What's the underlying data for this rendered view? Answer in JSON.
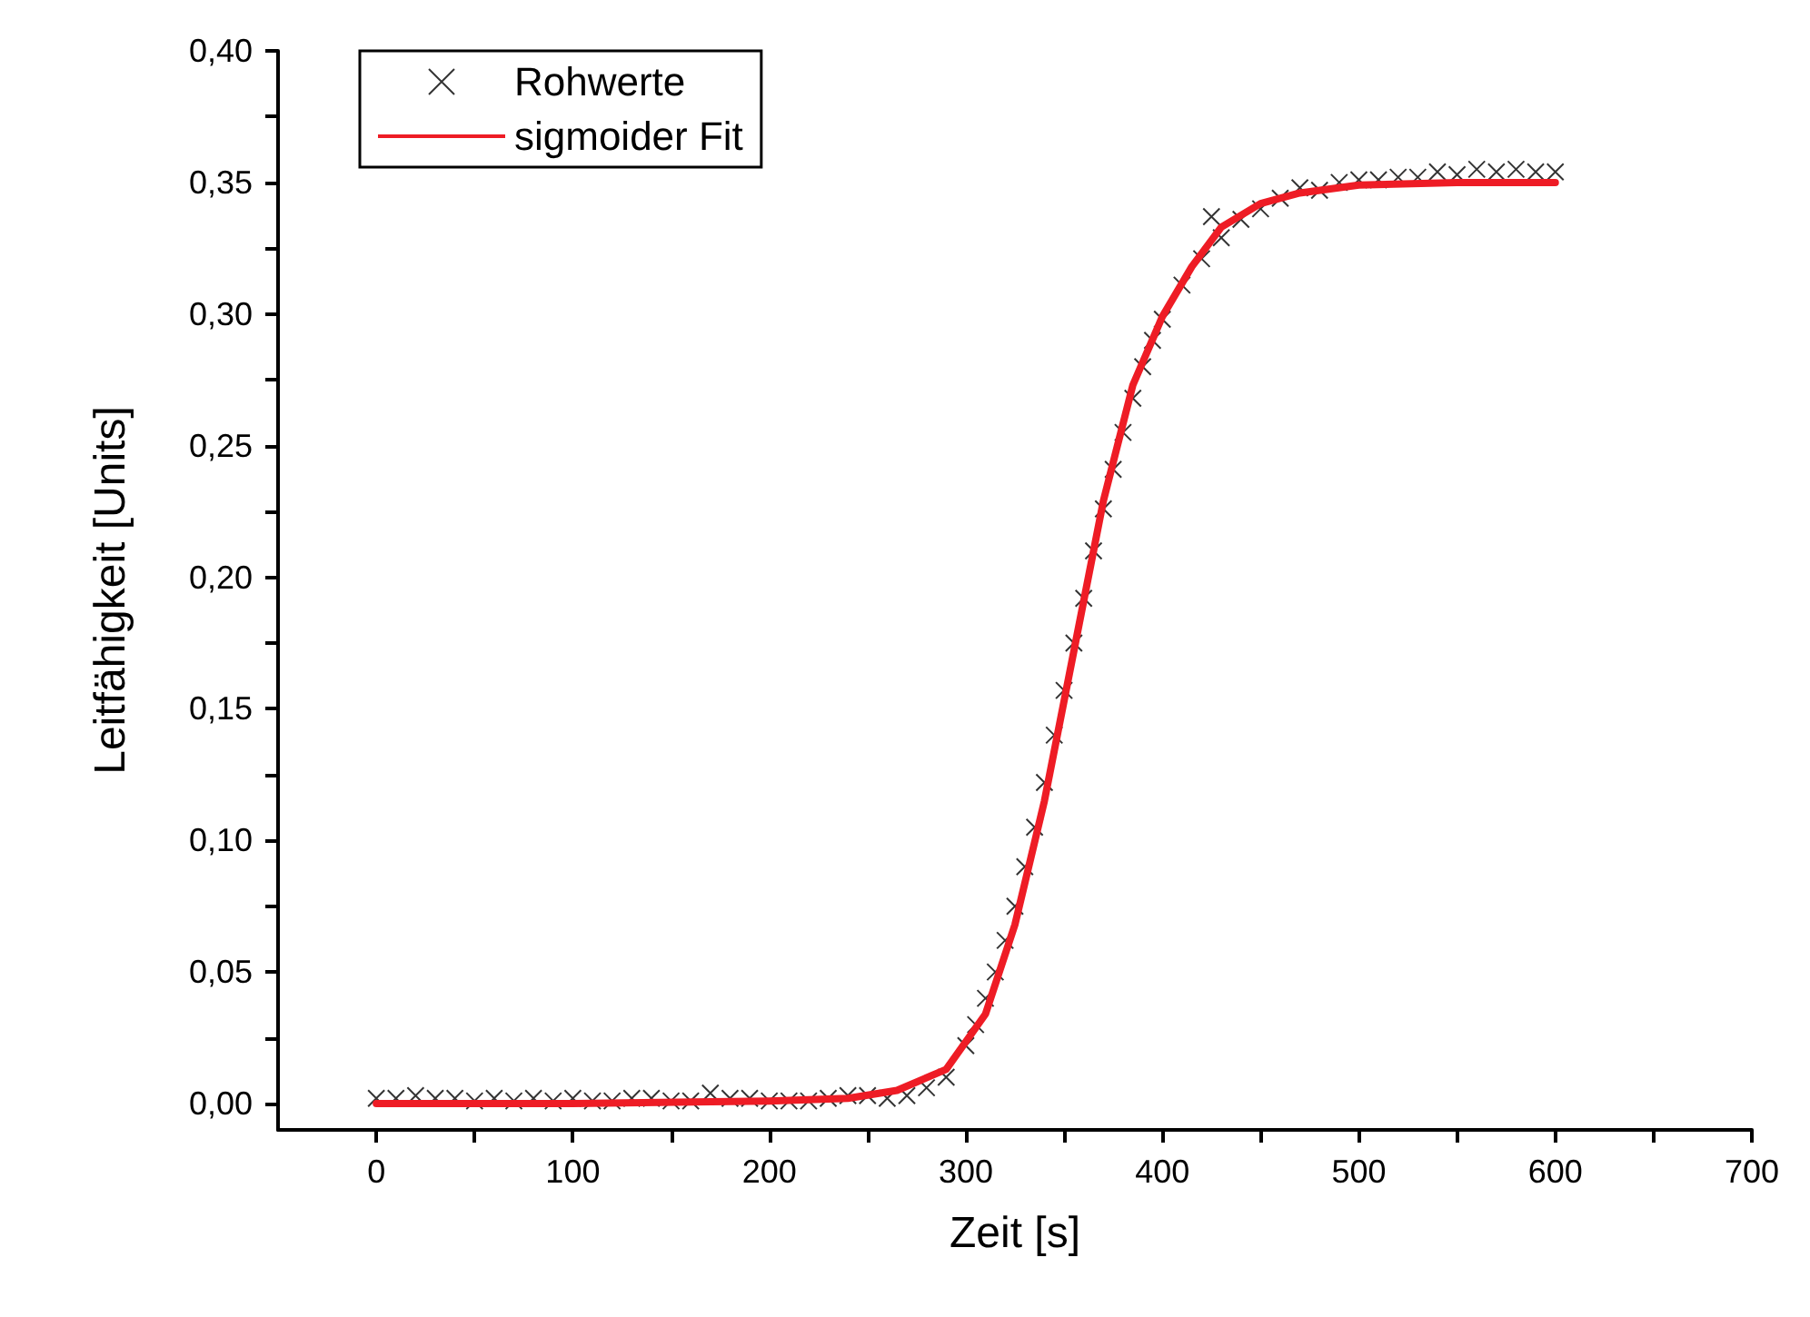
{
  "chart_data": {
    "type": "scatter",
    "xlabel": "Zeit [s]",
    "ylabel": "Leitfähigkeit [Units]",
    "xlim": [
      -50,
      700
    ],
    "ylim": [
      -0.01,
      0.4
    ],
    "xticks": [
      0,
      {
        "value": 50,
        "label": null
      },
      100,
      {
        "value": 150,
        "label": null
      },
      200,
      {
        "value": 250,
        "label": null
      },
      300,
      {
        "value": 350,
        "label": null
      },
      400,
      {
        "value": 450,
        "label": null
      },
      500,
      {
        "value": 550,
        "label": null
      },
      600,
      {
        "value": 650,
        "label": null
      },
      700
    ],
    "yticks": [
      {
        "value": 0,
        "label": "0,00"
      },
      {
        "value": 0.025,
        "label": null
      },
      {
        "value": 0.05,
        "label": "0,05"
      },
      {
        "value": 0.075,
        "label": null
      },
      {
        "value": 0.1,
        "label": "0,10"
      },
      {
        "value": 0.125,
        "label": null
      },
      {
        "value": 0.15,
        "label": "0,15"
      },
      {
        "value": 0.175,
        "label": null
      },
      {
        "value": 0.2,
        "label": "0,20"
      },
      {
        "value": 0.225,
        "label": null
      },
      {
        "value": 0.25,
        "label": "0,25"
      },
      {
        "value": 0.275,
        "label": null
      },
      {
        "value": 0.3,
        "label": "0,30"
      },
      {
        "value": 0.325,
        "label": null
      },
      {
        "value": 0.35,
        "label": "0,35"
      },
      {
        "value": 0.375,
        "label": null
      },
      {
        "value": 0.4,
        "label": "0,40"
      }
    ],
    "grid": false,
    "legend": "top left",
    "series": [
      {
        "name": "Rohwerte",
        "marker": "cross",
        "color": "#000000",
        "x": [
          0,
          10,
          20,
          30,
          40,
          50,
          60,
          70,
          80,
          90,
          100,
          110,
          120,
          130,
          140,
          150,
          160,
          170,
          180,
          190,
          200,
          210,
          220,
          230,
          240,
          250,
          260,
          270,
          280,
          290,
          300,
          305,
          310,
          315,
          320,
          325,
          330,
          335,
          340,
          345,
          350,
          355,
          360,
          365,
          370,
          375,
          380,
          385,
          390,
          395,
          400,
          410,
          420,
          425,
          430,
          440,
          450,
          460,
          470,
          480,
          490,
          500,
          510,
          520,
          530,
          540,
          550,
          560,
          570,
          580,
          590,
          600
        ],
        "values": [
          0.002,
          0.002,
          0.003,
          0.002,
          0.002,
          0.001,
          0.002,
          0.001,
          0.002,
          0.001,
          0.002,
          0.001,
          0.001,
          0.002,
          0.002,
          0.001,
          0.001,
          0.004,
          0.002,
          0.002,
          0.001,
          0.001,
          0.001,
          0.002,
          0.003,
          0.003,
          0.002,
          0.003,
          0.006,
          0.01,
          0.022,
          0.03,
          0.04,
          0.05,
          0.062,
          0.075,
          0.09,
          0.105,
          0.122,
          0.14,
          0.157,
          0.175,
          0.192,
          0.21,
          0.226,
          0.241,
          0.255,
          0.268,
          0.28,
          0.29,
          0.298,
          0.311,
          0.321,
          0.337,
          0.329,
          0.336,
          0.34,
          0.344,
          0.348,
          0.347,
          0.35,
          0.351,
          0.351,
          0.352,
          0.352,
          0.354,
          0.353,
          0.355,
          0.354,
          0.355,
          0.354,
          0.354
        ]
      },
      {
        "name": "sigmoider Fit",
        "type": "line",
        "marker": "none",
        "line_style": "solid",
        "color": "#ee1c25",
        "x": [
          0,
          100,
          200,
          240,
          265,
          290,
          310,
          325,
          340,
          355,
          370,
          385,
          400,
          415,
          430,
          450,
          470,
          500,
          550,
          600
        ],
        "values": [
          0,
          0,
          0.001,
          0.002,
          0.005,
          0.013,
          0.034,
          0.068,
          0.115,
          0.172,
          0.229,
          0.273,
          0.299,
          0.318,
          0.333,
          0.342,
          0.346,
          0.349,
          0.35,
          0.35
        ]
      }
    ]
  }
}
